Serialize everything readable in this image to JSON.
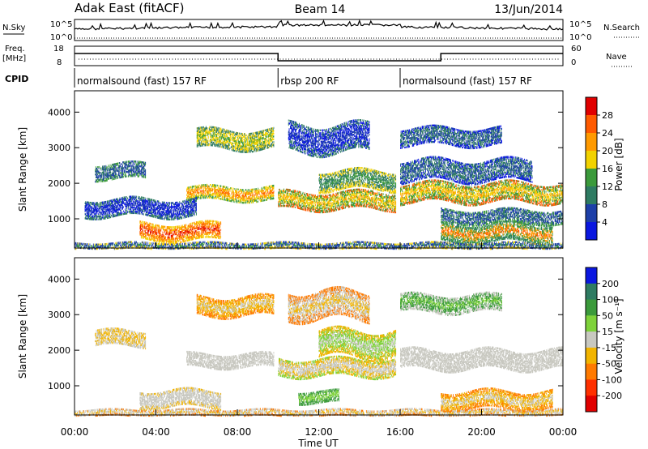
{
  "header": {
    "station": "Adak East (fitACF)",
    "beam": "Beam 14",
    "date": "13/Jun/2014"
  },
  "noise_panel": {
    "left_label": "N.Sky",
    "right_label": "N.Search",
    "ticks_left": [
      "10^5",
      "10^0"
    ],
    "ticks_right": [
      "10^5",
      "10^0"
    ]
  },
  "freq_panel": {
    "left_label": "Freq.",
    "left_unit": "[MHz]",
    "right_label": "Nave",
    "ticks_left": [
      "18",
      "8"
    ],
    "ticks_right": [
      "60",
      "0"
    ],
    "cpid_label": "CPID"
  },
  "cpid": [
    {
      "start": 0,
      "end": 10,
      "label": "normalsound (fast) 157 RF"
    },
    {
      "start": 10,
      "end": 16,
      "label": "rbsp 200 RF"
    },
    {
      "start": 16,
      "end": 24,
      "label": "normalsound (fast) 157 RF"
    }
  ],
  "chart_data": [
    {
      "type": "heatmap",
      "name": "power",
      "ylabel": "Slant Range [km]",
      "yticks": [
        "1000",
        "2000",
        "3000",
        "4000"
      ],
      "ylim": [
        180,
        4600
      ],
      "xlim": [
        0,
        24
      ],
      "colorbar": {
        "label": "Power [dB]",
        "ticks": [
          "28",
          "24",
          "20",
          "16",
          "12",
          "8",
          "4"
        ],
        "colors": [
          "#e00000",
          "#ff5a00",
          "#ff9a00",
          "#f2d200",
          "#3b9a3b",
          "#2e7b62",
          "#1d3fa8",
          "#0a17e0"
        ]
      },
      "bands": [
        {
          "x0": 3.2,
          "x1": 7.2,
          "y0": 430,
          "y1": 920,
          "c": [
            "#e00000",
            "#ff5a00",
            "#ff9a00",
            "#f2d200"
          ]
        },
        {
          "x0": 5.5,
          "x1": 9.8,
          "y0": 1550,
          "y1": 1950,
          "c": [
            "#ff5a00",
            "#ff9a00",
            "#f2d200",
            "#3b9a3b"
          ]
        },
        {
          "x0": 10.0,
          "x1": 15.8,
          "y0": 1300,
          "y1": 1800,
          "c": [
            "#ff9a00",
            "#f2d200",
            "#3b9a3b",
            "#ff5a00"
          ]
        },
        {
          "x0": 12.0,
          "x1": 15.8,
          "y0": 1850,
          "y1": 2400,
          "c": [
            "#3b9a3b",
            "#2e7b62",
            "#f2d200"
          ]
        },
        {
          "x0": 16.0,
          "x1": 24.0,
          "y0": 1500,
          "y1": 2050,
          "c": [
            "#ff9a00",
            "#f2d200",
            "#3b9a3b",
            "#ff5a00"
          ]
        },
        {
          "x0": 18.0,
          "x1": 23.5,
          "y0": 380,
          "y1": 900,
          "c": [
            "#ff5a00",
            "#ff9a00",
            "#3b9a3b",
            "#2e7b62"
          ]
        },
        {
          "x0": 1.0,
          "x1": 3.5,
          "y0": 2150,
          "y1": 2600,
          "c": [
            "#2e7b62",
            "#1d3fa8",
            "#3b9a3b"
          ]
        },
        {
          "x0": 0.5,
          "x1": 6.0,
          "y0": 1100,
          "y1": 1600,
          "c": [
            "#1d3fa8",
            "#0a17e0",
            "#2e7b62"
          ]
        },
        {
          "x0": 6.0,
          "x1": 9.8,
          "y0": 3000,
          "y1": 3550,
          "c": [
            "#3b9a3b",
            "#f2d200",
            "#2e7b62"
          ]
        },
        {
          "x0": 16.0,
          "x1": 21.0,
          "y0": 3100,
          "y1": 3600,
          "c": [
            "#1d3fa8",
            "#2e7b62",
            "#0a17e0"
          ]
        },
        {
          "x0": 10.5,
          "x1": 14.5,
          "y0": 2900,
          "y1": 3700,
          "c": [
            "#1d3fa8",
            "#0a17e0",
            "#2e7b62"
          ]
        },
        {
          "x0": 16.0,
          "x1": 22.5,
          "y0": 2100,
          "y1": 2700,
          "c": [
            "#1d3fa8",
            "#2e7b62",
            "#0a17e0"
          ]
        },
        {
          "x0": 18.0,
          "x1": 24.0,
          "y0": 900,
          "y1": 1300,
          "c": [
            "#2e7b62",
            "#1d3fa8",
            "#3b9a3b"
          ]
        },
        {
          "x0": 0.0,
          "x1": 24.0,
          "y0": 180,
          "y1": 380,
          "c": [
            "#3b9a3b",
            "#1d3fa8",
            "#f2d200"
          ]
        }
      ]
    },
    {
      "type": "heatmap",
      "name": "velocity",
      "ylabel": "Slant Range [km]",
      "xlabel": "Time UT",
      "yticks": [
        "1000",
        "2000",
        "3000",
        "4000"
      ],
      "xticks": [
        "00:00",
        "04:00",
        "08:00",
        "12:00",
        "16:00",
        "20:00",
        "00:00"
      ],
      "ylim": [
        180,
        4600
      ],
      "xlim": [
        0,
        24
      ],
      "colorbar": {
        "label": "Velocity [m s⁻¹]",
        "ticks": [
          "200",
          "100",
          "50",
          "15",
          "-15",
          "-50",
          "-100",
          "-200"
        ],
        "colors": [
          "#0a17e0",
          "#2e7b62",
          "#3b9a3b",
          "#7ed23a",
          "#c8c8c0",
          "#f2b400",
          "#ff7a00",
          "#ff3000",
          "#e00000"
        ]
      },
      "bands": [
        {
          "x0": 3.2,
          "x1": 7.2,
          "y0": 430,
          "y1": 920,
          "c": [
            "#c8c8c0",
            "#c8c8c0",
            "#c8c8c0",
            "#f2b400"
          ]
        },
        {
          "x0": 5.5,
          "x1": 9.8,
          "y0": 1550,
          "y1": 1950,
          "c": [
            "#c8c8c0",
            "#c8c8c0",
            "#c8c8c0"
          ]
        },
        {
          "x0": 10.0,
          "x1": 15.8,
          "y0": 1300,
          "y1": 1800,
          "c": [
            "#c8c8c0",
            "#c8c8c0",
            "#f2b400",
            "#7ed23a"
          ]
        },
        {
          "x0": 16.0,
          "x1": 24.0,
          "y0": 1500,
          "y1": 2050,
          "c": [
            "#c8c8c0",
            "#c8c8c0",
            "#c8c8c0"
          ]
        },
        {
          "x0": 18.0,
          "x1": 23.5,
          "y0": 380,
          "y1": 900,
          "c": [
            "#c8c8c0",
            "#f2b400",
            "#ff7a00"
          ]
        },
        {
          "x0": 1.0,
          "x1": 3.5,
          "y0": 2150,
          "y1": 2600,
          "c": [
            "#c8c8c0",
            "#f2b400",
            "#c8c8c0"
          ]
        },
        {
          "x0": 6.0,
          "x1": 9.8,
          "y0": 3000,
          "y1": 3550,
          "c": [
            "#c8c8c0",
            "#f2b400",
            "#ff7a00"
          ]
        },
        {
          "x0": 16.0,
          "x1": 21.0,
          "y0": 3100,
          "y1": 3600,
          "c": [
            "#7ed23a",
            "#3b9a3b",
            "#c8c8c0"
          ]
        },
        {
          "x0": 11.0,
          "x1": 13.0,
          "y0": 550,
          "y1": 900,
          "c": [
            "#7ed23a",
            "#3b9a3b"
          ]
        },
        {
          "x0": 12.0,
          "x1": 15.8,
          "y0": 1850,
          "y1": 2600,
          "c": [
            "#c8c8c0",
            "#7ed23a",
            "#f2b400"
          ]
        },
        {
          "x0": 10.5,
          "x1": 14.5,
          "y0": 2900,
          "y1": 3700,
          "c": [
            "#f2b400",
            "#c8c8c0",
            "#ff7a00"
          ]
        },
        {
          "x0": 0.0,
          "x1": 24.0,
          "y0": 180,
          "y1": 380,
          "c": [
            "#f2b400",
            "#c8c8c0",
            "#ff7a00"
          ]
        }
      ]
    }
  ]
}
